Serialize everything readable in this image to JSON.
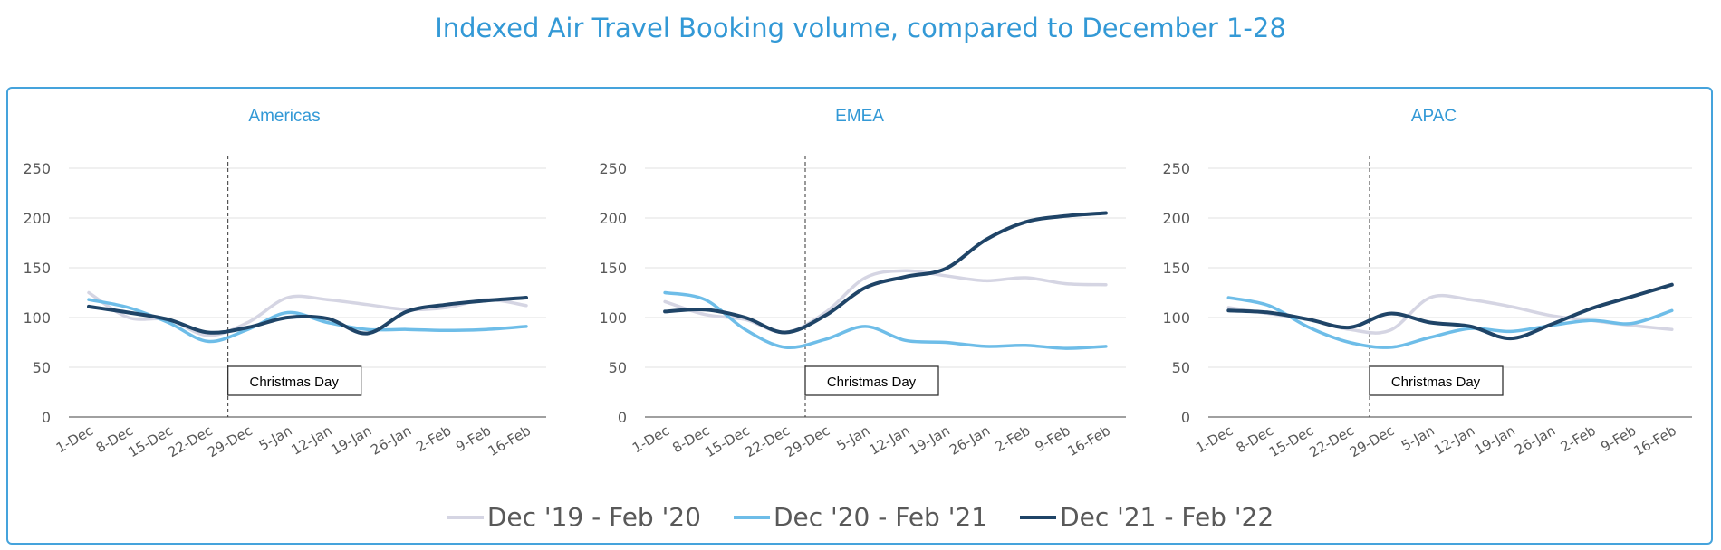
{
  "main_title": "Indexed Air Travel Booking volume, compared to December 1-28",
  "colors": {
    "title": "#3399d6",
    "series": [
      "#d5d5e3",
      "#6ebde8",
      "#1f4467"
    ],
    "axis": "#808080",
    "grid": "#ececec",
    "tick_text": "#595959"
  },
  "legend": {
    "items": [
      "Dec '19 - Feb '20",
      "Dec '20 - Feb '21",
      "Dec '21 - Feb '22"
    ]
  },
  "chart_data": [
    {
      "type": "line",
      "title": "Americas",
      "categories": [
        "1-Dec",
        "8-Dec",
        "15-Dec",
        "22-Dec",
        "29-Dec",
        "5-Jan",
        "12-Jan",
        "19-Jan",
        "26-Jan",
        "2-Feb",
        "9-Feb",
        "16-Feb"
      ],
      "ylim": [
        0,
        250
      ],
      "yticks": [
        "0",
        "50",
        "100",
        "150",
        "200",
        "250"
      ],
      "annotation": "Christmas Day",
      "series": [
        {
          "name": "Dec '19 - Feb '20",
          "values": [
            125,
            100,
            98,
            82,
            95,
            120,
            118,
            113,
            108,
            110,
            118,
            112
          ]
        },
        {
          "name": "Dec '20 - Feb '21",
          "values": [
            118,
            110,
            95,
            76,
            88,
            105,
            95,
            88,
            88,
            87,
            88,
            91
          ]
        },
        {
          "name": "Dec '21 - Feb '22",
          "values": [
            111,
            105,
            98,
            85,
            90,
            100,
            99,
            84,
            106,
            113,
            117,
            120
          ]
        }
      ]
    },
    {
      "type": "line",
      "title": "EMEA",
      "categories": [
        "1-Dec",
        "8-Dec",
        "15-Dec",
        "22-Dec",
        "29-Dec",
        "5-Jan",
        "12-Jan",
        "19-Jan",
        "26-Jan",
        "2-Feb",
        "9-Feb",
        "16-Feb"
      ],
      "ylim": [
        0,
        250
      ],
      "yticks": [
        "0",
        "50",
        "100",
        "150",
        "200",
        "250"
      ],
      "annotation": "Christmas Day",
      "series": [
        {
          "name": "Dec '19 - Feb '20",
          "values": [
            116,
            103,
            98,
            85,
            105,
            140,
            147,
            142,
            137,
            140,
            134,
            133
          ]
        },
        {
          "name": "Dec '20 - Feb '21",
          "values": [
            125,
            118,
            88,
            70,
            78,
            91,
            77,
            75,
            71,
            72,
            69,
            71
          ]
        },
        {
          "name": "Dec '21 - Feb '22",
          "values": [
            106,
            108,
            100,
            85,
            102,
            130,
            141,
            149,
            178,
            196,
            202,
            205
          ]
        }
      ]
    },
    {
      "type": "line",
      "title": "APAC",
      "categories": [
        "1-Dec",
        "8-Dec",
        "15-Dec",
        "22-Dec",
        "29-Dec",
        "5-Jan",
        "12-Jan",
        "19-Jan",
        "26-Jan",
        "2-Feb",
        "9-Feb",
        "16-Feb"
      ],
      "ylim": [
        0,
        250
      ],
      "yticks": [
        "0",
        "50",
        "100",
        "150",
        "200",
        "250"
      ],
      "annotation": "Christmas Day",
      "series": [
        {
          "name": "Dec '19 - Feb '20",
          "values": [
            110,
            104,
            98,
            88,
            87,
            120,
            118,
            111,
            102,
            97,
            92,
            88
          ]
        },
        {
          "name": "Dec '20 - Feb '21",
          "values": [
            120,
            112,
            90,
            75,
            70,
            80,
            89,
            86,
            92,
            97,
            94,
            107
          ]
        },
        {
          "name": "Dec '21 - Feb '22",
          "values": [
            107,
            105,
            98,
            90,
            104,
            95,
            91,
            79,
            93,
            109,
            121,
            133
          ]
        }
      ]
    }
  ]
}
